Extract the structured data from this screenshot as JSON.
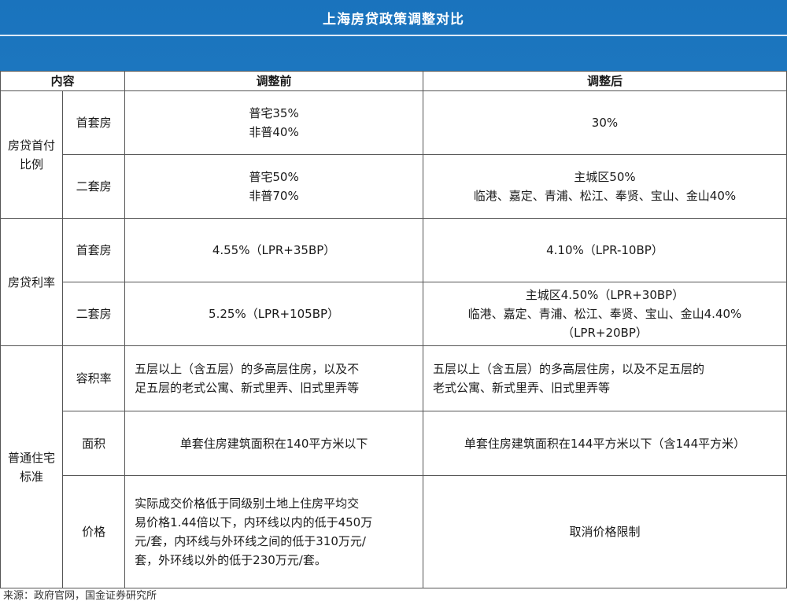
{
  "title": "上海房贷政策调整对比",
  "header": {
    "content": "内容",
    "before": "调整前",
    "after": "调整后"
  },
  "sections": [
    {
      "category": "房贷首付比例",
      "rows": [
        {
          "sub": "首套房",
          "before": [
            "普宅35%",
            "非普40%"
          ],
          "after": [
            "30%"
          ]
        },
        {
          "sub": "二套房",
          "before": [
            "普宅50%",
            "非普70%"
          ],
          "after": [
            "主城区50%",
            "临港、嘉定、青浦、松江、奉贤、宝山、金山40%"
          ]
        }
      ]
    },
    {
      "category": "房贷利率",
      "rows": [
        {
          "sub": "首套房",
          "before": [
            "4.55%（LPR+35BP）"
          ],
          "after": [
            "4.10%（LPR-10BP）"
          ]
        },
        {
          "sub": "二套房",
          "before": [
            "5.25%（LPR+105BP）"
          ],
          "after": [
            "主城区4.50%（LPR+30BP）",
            "临港、嘉定、青浦、松江、奉贤、宝山、金山4.40%",
            "（LPR+20BP）"
          ]
        }
      ]
    },
    {
      "category": "普通住宅标准",
      "rows": [
        {
          "sub": "容积率",
          "before": [
            "五层以上（含五层）的多高层住房，以及不",
            "足五层的老式公寓、新式里弄、旧式里弄等"
          ],
          "after": [
            "五层以上（含五层）的多高层住房，以及不足五层的",
            "老式公寓、新式里弄、旧式里弄等"
          ]
        },
        {
          "sub": "面积",
          "before": [
            "单套住房建筑面积在140平方米以下"
          ],
          "after": [
            "单套住房建筑面积在144平方米以下（含144平方米）"
          ]
        },
        {
          "sub": "价格",
          "before": [
            "实际成交价格低于同级别土地上住房平均交",
            "易价格1.44倍以下，内环线以内的低于450万",
            "元/套，内环线与外环线之间的低于310万元/",
            "套，外环线以外的低于230万元/套。"
          ],
          "after": [
            "取消价格限制"
          ]
        }
      ]
    }
  ],
  "source": "来源：政府官网，国金证券研究所",
  "colors": {
    "banner": "#1a73bd",
    "border": "#555555"
  }
}
